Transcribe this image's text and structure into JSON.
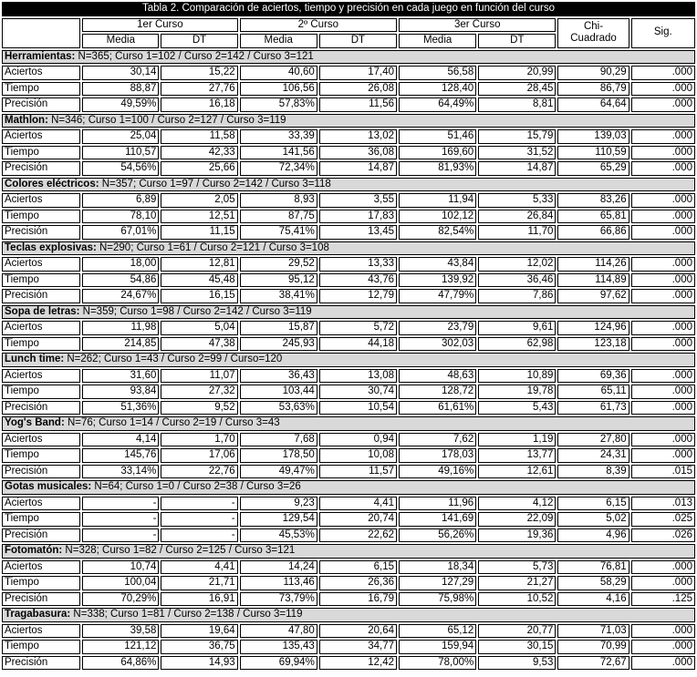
{
  "title": "Tabla 2. Comparación de aciertos, tiempo y precisión en cada juego en función del curso",
  "colors": {
    "title_bg": "#000000",
    "title_fg": "#ffffff",
    "section_bg": "#d9d9d9",
    "border": "#000000"
  },
  "header": {
    "groups": [
      "1er Curso",
      "2º Curso",
      "3er Curso"
    ],
    "sub_media": "Media",
    "sub_dt": "DT",
    "chi_line1": "Chi-",
    "chi_line2": "Cuadrado",
    "sig": "Sig."
  },
  "sections": [
    {
      "name": "Herramientas:",
      "info": "N=365; Curso 1=102 / Curso 2=142 / Curso 3=121",
      "rows": [
        {
          "label": "Aciertos",
          "values": [
            "30,14",
            "15,22",
            "40,60",
            "17,40",
            "56,58",
            "20,99",
            "90,29",
            ".000"
          ]
        },
        {
          "label": "Tiempo",
          "values": [
            "88,87",
            "27,76",
            "106,56",
            "26,08",
            "128,40",
            "28,45",
            "86,79",
            ".000"
          ]
        },
        {
          "label": "Precisión",
          "values": [
            "49,59%",
            "16,18",
            "57,83%",
            "11,56",
            "64,49%",
            "8,81",
            "64,64",
            ".000"
          ]
        }
      ]
    },
    {
      "name": "Mathlon:",
      "info": "N=346; Curso 1=100 / Curso 2=127 / Curso 3=119",
      "rows": [
        {
          "label": "Aciertos",
          "values": [
            "25,04",
            "11,58",
            "33,39",
            "13,02",
            "51,46",
            "15,79",
            "139,03",
            ".000"
          ]
        },
        {
          "label": "Tiempo",
          "values": [
            "110,57",
            "42,33",
            "141,56",
            "36,08",
            "169,60",
            "31,52",
            "110,59",
            ".000"
          ]
        },
        {
          "label": "Precisión",
          "values": [
            "54,56%",
            "25,66",
            "72,34%",
            "14,87",
            "81,93%",
            "14,87",
            "65,29",
            ".000"
          ]
        }
      ]
    },
    {
      "name": "Colores eléctricos:",
      "info": "N=357; Curso 1=97 / Curso 2=142 / Curso 3=118",
      "rows": [
        {
          "label": "Aciertos",
          "values": [
            "6,89",
            "2,05",
            "8,93",
            "3,55",
            "11,94",
            "5,33",
            "83,26",
            ".000"
          ]
        },
        {
          "label": "Tiempo",
          "values": [
            "78,10",
            "12,51",
            "87,75",
            "17,83",
            "102,12",
            "26,84",
            "65,81",
            ".000"
          ]
        },
        {
          "label": "Precisión",
          "values": [
            "67,01%",
            "11,15",
            "75,41%",
            "13,45",
            "82,54%",
            "11,70",
            "66,86",
            ".000"
          ]
        }
      ]
    },
    {
      "name": "Teclas explosivas:",
      "info": "N=290; Curso 1=61 / Curso 2=121 / Curso 3=108",
      "rows": [
        {
          "label": "Aciertos",
          "values": [
            "18,00",
            "12,81",
            "29,52",
            "13,33",
            "43,84",
            "12,02",
            "114,26",
            ".000"
          ]
        },
        {
          "label": "Tiempo",
          "values": [
            "54,86",
            "45,48",
            "95,12",
            "43,76",
            "139,92",
            "36,46",
            "114,89",
            ".000"
          ]
        },
        {
          "label": "Precisión",
          "values": [
            "24,67%",
            "16,15",
            "38,41%",
            "12,79",
            "47,79%",
            "7,86",
            "97,62",
            ".000"
          ]
        }
      ]
    },
    {
      "name": "Sopa de letras:",
      "info": "N=359; Curso 1=98 / Curso 2=142 / Curso 3=119",
      "rows": [
        {
          "label": "Aciertos",
          "values": [
            "11,98",
            "5,04",
            "15,87",
            "5,72",
            "23,79",
            "9,61",
            "124,96",
            ".000"
          ]
        },
        {
          "label": "Tiempo",
          "values": [
            "214,85",
            "47,38",
            "245,93",
            "44,18",
            "302,03",
            "62,98",
            "123,18",
            ".000"
          ]
        }
      ]
    },
    {
      "name": "Lunch time:",
      "info": "N=262; Curso 1=43 / Curso 2=99 / Curso=120",
      "rows": [
        {
          "label": "Aciertos",
          "values": [
            "31,60",
            "11,07",
            "36,43",
            "13,08",
            "48,63",
            "10,89",
            "69,36",
            ".000"
          ]
        },
        {
          "label": "Tiempo",
          "values": [
            "93,84",
            "27,32",
            "103,44",
            "30,74",
            "128,72",
            "19,78",
            "65,11",
            ".000"
          ]
        },
        {
          "label": "Precisión",
          "values": [
            "51,36%",
            "9,52",
            "53,63%",
            "10,54",
            "61,61%",
            "5,43",
            "61,73",
            ".000"
          ]
        }
      ]
    },
    {
      "name": "Yog's Band:",
      "info": "N=76;  Curso 1=14 / Curso 2=19 / Curso 3=43",
      "rows": [
        {
          "label": "Aciertos",
          "values": [
            "4,14",
            "1,70",
            "7,68",
            "0,94",
            "7,62",
            "1,19",
            "27,80",
            ".000"
          ]
        },
        {
          "label": "Tiempo",
          "values": [
            "145,76",
            "17,06",
            "178,50",
            "10,08",
            "178,03",
            "13,77",
            "24,31",
            ".000"
          ]
        },
        {
          "label": "Precisión",
          "values": [
            "33,14%",
            "22,76",
            "49,47%",
            "11,57",
            "49,16%",
            "12,61",
            "8,39",
            ".015"
          ]
        }
      ]
    },
    {
      "name": "Gotas musicales:",
      "info": "N=64;  Curso 1=0 / Curso 2=38 / Curso 3=26",
      "rows": [
        {
          "label": "Aciertos",
          "values": [
            "-",
            "-",
            "9,23",
            "4,41",
            "11,96",
            "4,12",
            "6,15",
            ".013"
          ]
        },
        {
          "label": "Tiempo",
          "values": [
            "-",
            "-",
            "129,54",
            "20,74",
            "141,69",
            "22,09",
            "5,02",
            ".025"
          ]
        },
        {
          "label": "Precisión",
          "values": [
            "-",
            "-",
            "45,53%",
            "22,62",
            "56,26%",
            "19,36",
            "4,96",
            ".026"
          ]
        }
      ]
    },
    {
      "name": "Fotomatón:",
      "info": "N=328;  Curso 1=82 / Curso 2=125 / Curso 3=121",
      "rows": [
        {
          "label": "Aciertos",
          "values": [
            "10,74",
            "4,41",
            "14,24",
            "6,15",
            "18,34",
            "5,73",
            "76,81",
            ".000"
          ]
        },
        {
          "label": "Tiempo",
          "values": [
            "100,04",
            "21,71",
            "113,46",
            "26,36",
            "127,29",
            "21,27",
            "58,29",
            ".000"
          ]
        },
        {
          "label": "Precisión",
          "values": [
            "70,29%",
            "16,91",
            "73,79%",
            "16,79",
            "75,98%",
            "10,52",
            "4,16",
            ".125"
          ]
        }
      ]
    },
    {
      "name": "Tragabasura:",
      "info": "N=338;  Curso 1=81 / Curso 2=138 / Curso 3=119",
      "rows": [
        {
          "label": "Aciertos",
          "values": [
            "39,58",
            "19,64",
            "47,80",
            "20,64",
            "65,12",
            "20,77",
            "71,03",
            ".000"
          ]
        },
        {
          "label": "Tiempo",
          "values": [
            "121,12",
            "36,75",
            "135,43",
            "34,77",
            "159,94",
            "30,15",
            "70,99",
            ".000"
          ]
        },
        {
          "label": "Precisión",
          "values": [
            "64,86%",
            "14,93",
            "69,94%",
            "12,42",
            "78,00%",
            "9,53",
            "72,67",
            ".000"
          ]
        }
      ]
    }
  ]
}
